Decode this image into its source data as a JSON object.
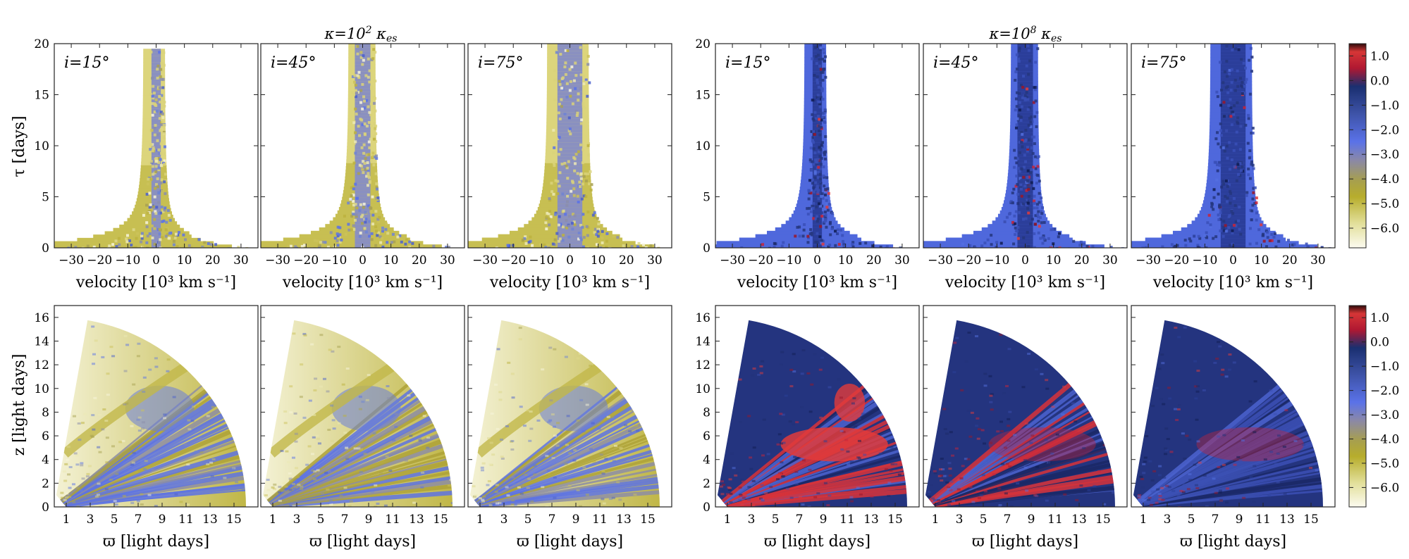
{
  "figure": {
    "groups": [
      {
        "title_main": "κ=10",
        "title_exp": "2",
        "title_tail": " κ",
        "title_sub": "es",
        "colormap": "yellow"
      },
      {
        "title_main": "κ=10",
        "title_exp": "8",
        "title_tail": " κ",
        "title_sub": "es",
        "colormap": "red"
      }
    ],
    "inclinations": [
      "i=15°",
      "i=45°",
      "i=75°"
    ],
    "top_ylabel": "τ [days]",
    "top_xlabel": "velocity [10³  km s⁻¹]",
    "bottom_ylabel": "z [light days]",
    "bottom_xlabel": "ϖ [light days]",
    "colorbar_ticks": [
      "1.0",
      "0.0",
      "−1.0",
      "−2.0",
      "−3.0",
      "−4.0",
      "−5.0",
      "−6.0"
    ]
  },
  "chart_data": [
    {
      "type": "heatmap",
      "panel": "top",
      "xlabel": "velocity [10³  km s⁻¹]",
      "ylabel": "τ [days]",
      "xlim": [
        -36,
        36
      ],
      "ylim": [
        0,
        20
      ],
      "xticks": [
        -30,
        -20,
        -10,
        0,
        10,
        20,
        30
      ],
      "yticks": [
        0,
        5,
        10,
        15,
        20
      ],
      "colorbar": {
        "ticks": [
          1.0,
          0.0,
          -1.0,
          -2.0,
          -3.0,
          -4.0,
          -5.0,
          -6.0
        ],
        "range": [
          -6.8,
          1.5
        ]
      },
      "panels": [
        {
          "kappa": "10^2 κ_es",
          "inclination": 15,
          "peak_tau": 19.5,
          "halfwidth": [
            3,
            4
          ]
        },
        {
          "kappa": "10^2 κ_es",
          "inclination": 45,
          "peak_tau": 20,
          "halfwidth": [
            5,
            6
          ]
        },
        {
          "kappa": "10^2 κ_es",
          "inclination": 75,
          "peak_tau": 20,
          "halfwidth": [
            8,
            9
          ]
        },
        {
          "kappa": "10^8 κ_es",
          "inclination": 15,
          "peak_tau": 20,
          "halfwidth": [
            3,
            4
          ]
        },
        {
          "kappa": "10^8 κ_es",
          "inclination": 45,
          "peak_tau": 20,
          "halfwidth": [
            5,
            6
          ]
        },
        {
          "kappa": "10^8 κ_es",
          "inclination": 75,
          "peak_tau": 20,
          "halfwidth": [
            8,
            9
          ]
        }
      ]
    },
    {
      "type": "heatmap",
      "panel": "bottom",
      "xlabel": "ϖ [light days]",
      "ylabel": "z [light days]",
      "xlim": [
        0,
        17
      ],
      "ylim": [
        0,
        17
      ],
      "xticks": [
        1,
        3,
        5,
        7,
        9,
        11,
        13,
        15
      ],
      "yticks": [
        0,
        2,
        4,
        6,
        8,
        10,
        12,
        14,
        16
      ],
      "wedge": {
        "r_inner": 1,
        "r_outer": 16
      },
      "colorbar": {
        "ticks": [
          1.0,
          0.0,
          -1.0,
          -2.0,
          -3.0,
          -4.0,
          -5.0,
          -6.0
        ],
        "range": [
          -6.8,
          1.5
        ]
      }
    }
  ]
}
